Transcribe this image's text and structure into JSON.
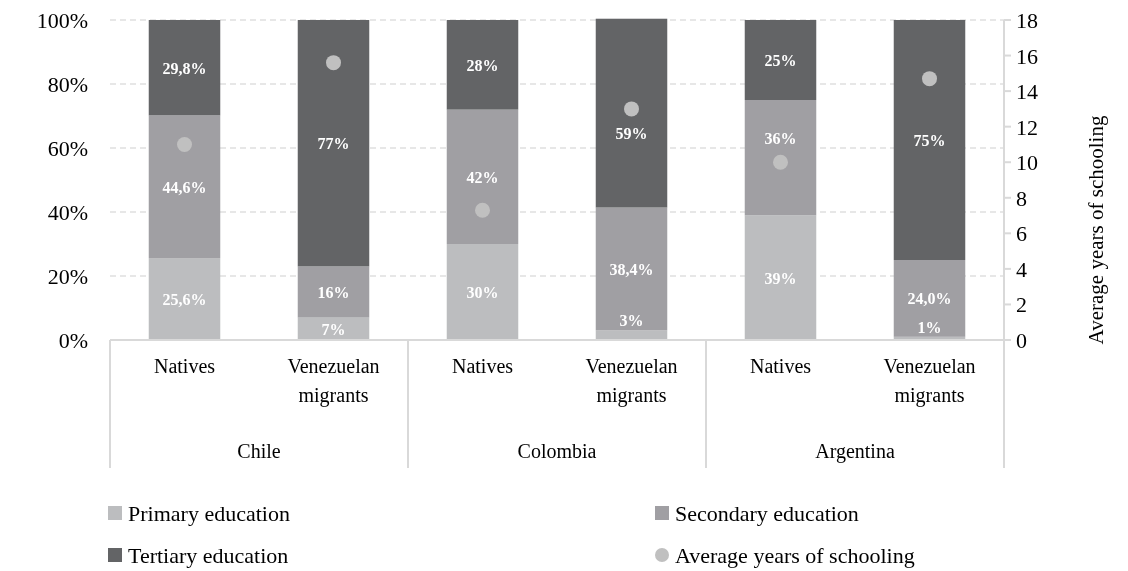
{
  "chart_data": {
    "type": "bar",
    "stacked": true,
    "categories": [
      "Natives",
      "Venezuelan migrants",
      "Natives",
      "Venezuelan migrants",
      "Natives",
      "Venezuelan migrants"
    ],
    "annotations": [
      "Chile",
      "Colombia",
      "Argentina"
    ],
    "y2label": "Average years of schooling",
    "series": [
      {
        "name": "Primary education",
        "color": "#bcbdbf",
        "values": [
          25.6,
          7,
          30,
          3,
          39,
          1
        ],
        "value_labels": [
          "25,6%",
          "7%",
          "30%",
          "3%",
          "39%",
          "1%"
        ]
      },
      {
        "name": "Secondary education",
        "color": "#a09fa3",
        "values": [
          44.6,
          16,
          42,
          38.4,
          36,
          24.0
        ],
        "value_labels": [
          "44,6%",
          "16%",
          "42%",
          "38,4%",
          "36%",
          "24,0%"
        ]
      },
      {
        "name": "Tertiary education",
        "color": "#636466",
        "values": [
          29.8,
          77,
          28,
          59,
          25,
          75
        ],
        "value_labels": [
          "29,8%",
          "77%",
          "28%",
          "59%",
          "25%",
          "75%"
        ]
      },
      {
        "name": "Average years of schooling",
        "type": "scatter",
        "axis": "y2",
        "color": "#c0c0c0",
        "marker": "circle",
        "values": [
          11.0,
          15.6,
          7.3,
          13.0,
          10.0,
          14.7
        ]
      }
    ],
    "ylim": [
      0,
      100
    ],
    "yticks": [
      {
        "value": 0,
        "label": "0%"
      },
      {
        "value": 20,
        "label": "20%"
      },
      {
        "value": 40,
        "label": "40%"
      },
      {
        "value": 60,
        "label": "60%"
      },
      {
        "value": 80,
        "label": "80%"
      },
      {
        "value": 100,
        "label": "100%"
      }
    ],
    "y2lim": [
      0,
      18
    ],
    "y2ticks": [
      0,
      2,
      4,
      6,
      8,
      10,
      12,
      14,
      16,
      18
    ],
    "grid": "y",
    "legend": "bottom"
  }
}
